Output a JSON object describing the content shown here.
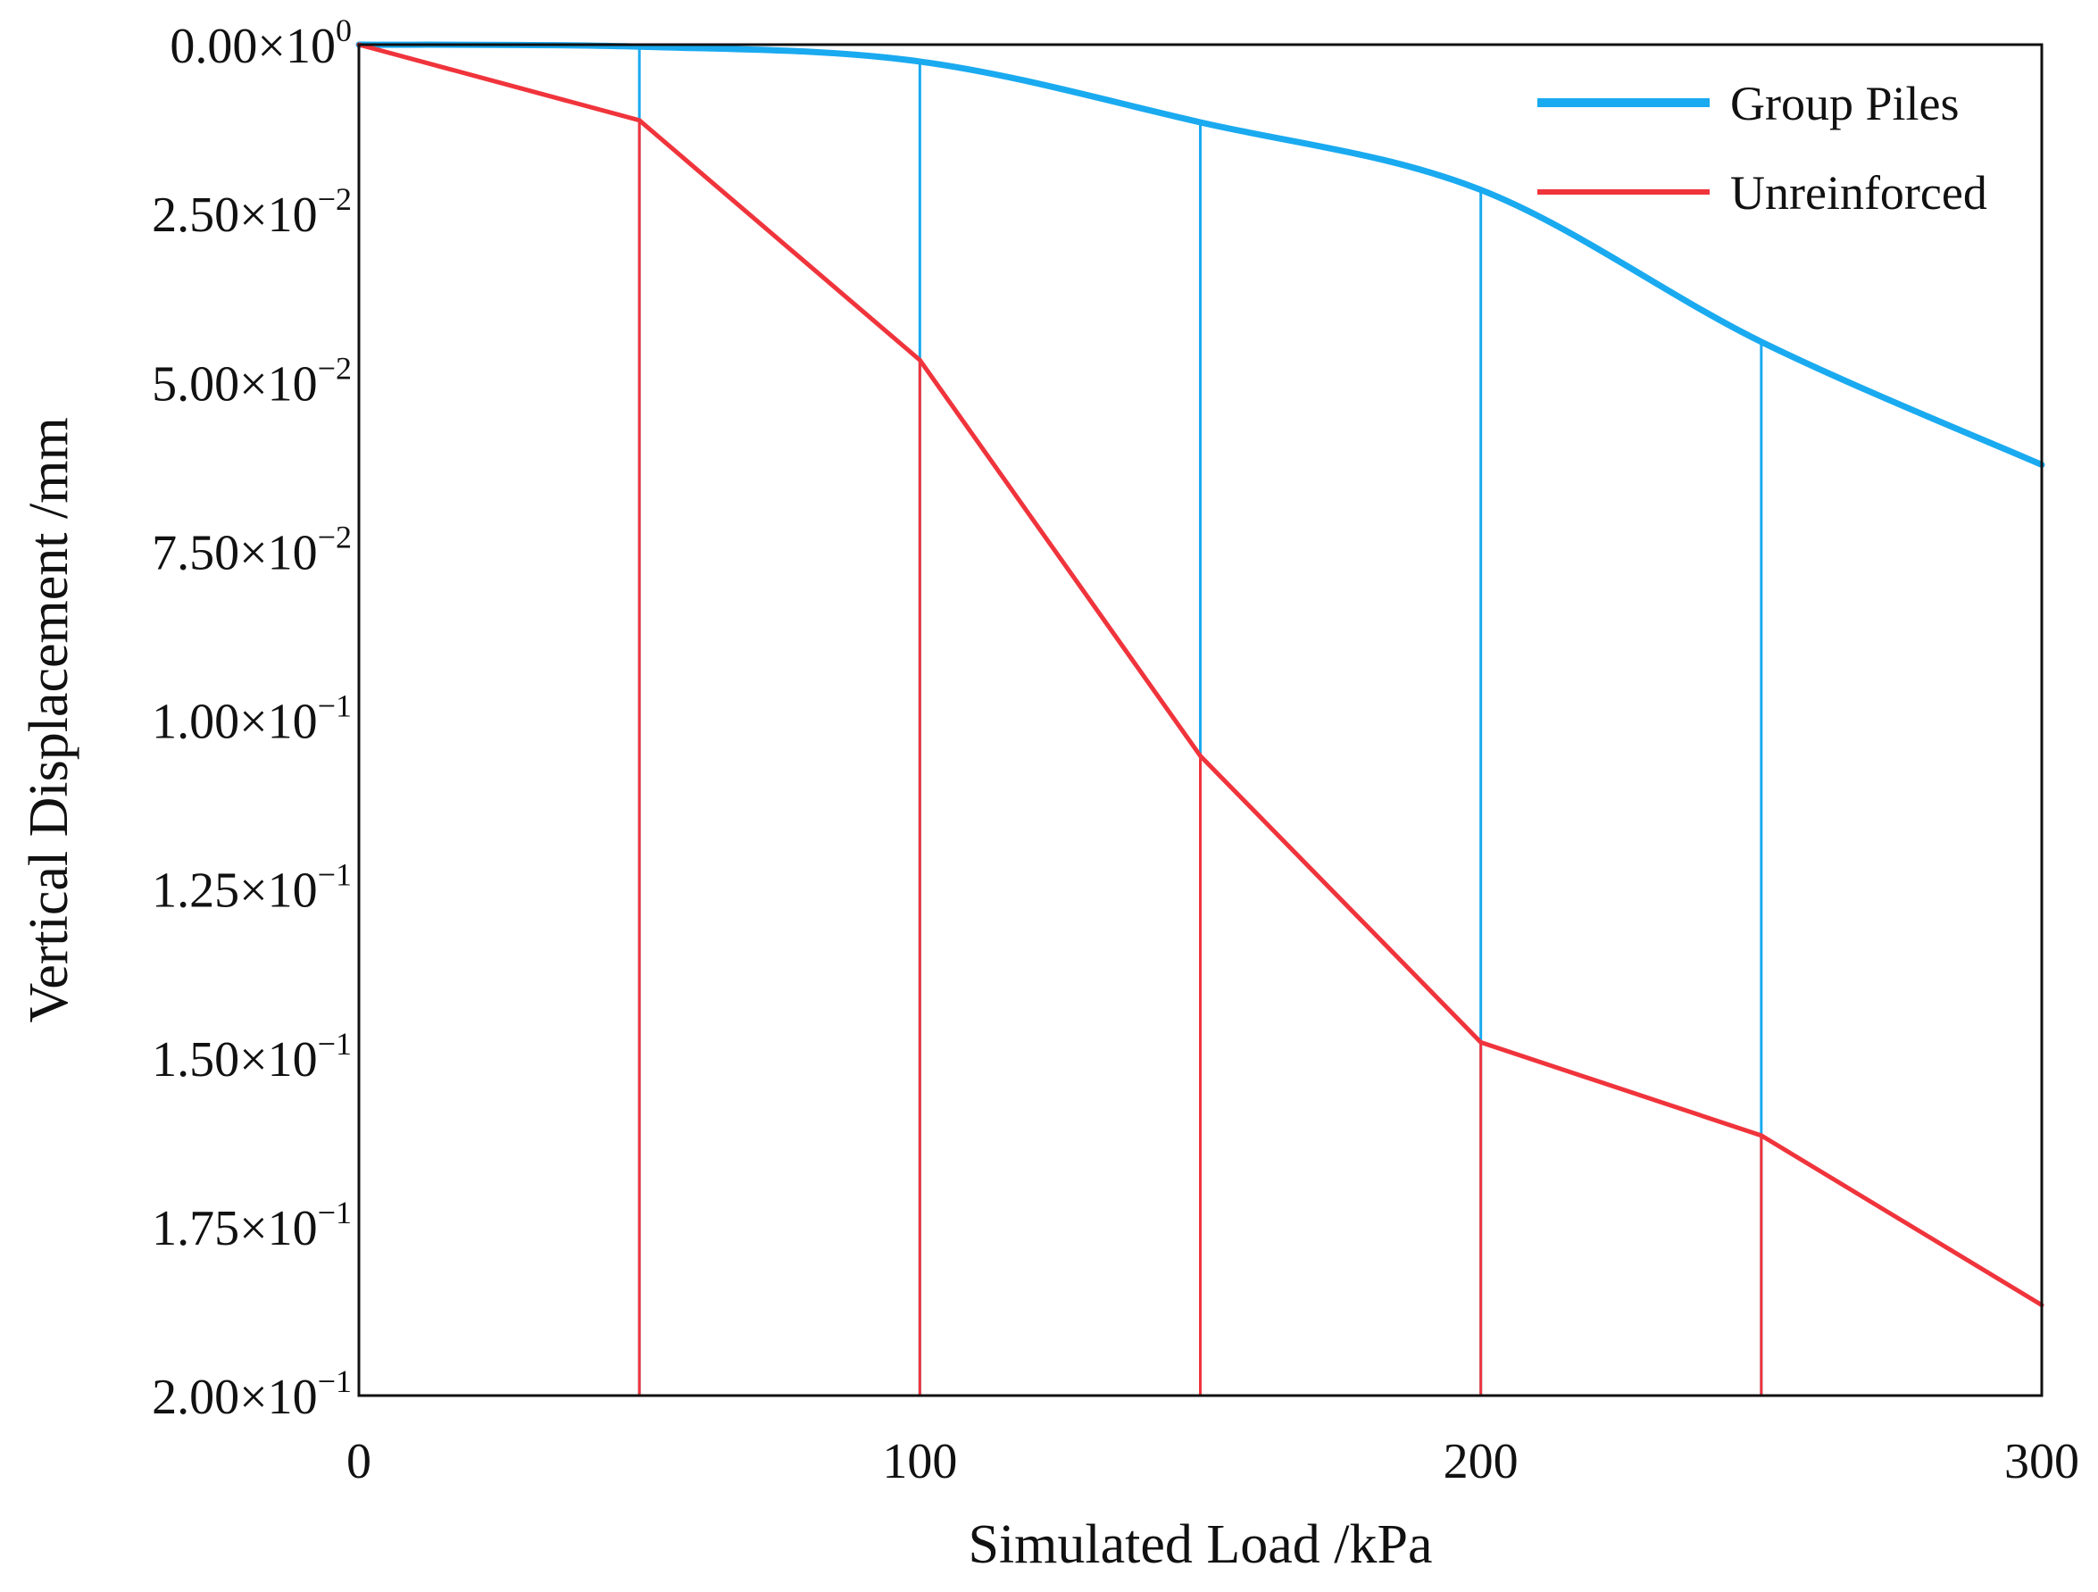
{
  "chart_data": {
    "type": "line",
    "title": "",
    "xlabel": "Simulated Load /kPa",
    "ylabel": "Vertical Displacement /mm",
    "xlim": [
      0,
      300
    ],
    "ylim": [
      0,
      0.2
    ],
    "y_inverted": true,
    "x_ticks": [
      0,
      100,
      200,
      300
    ],
    "x_tick_labels": [
      "0",
      "100",
      "200",
      "300"
    ],
    "y_ticks": [
      0,
      0.025,
      0.05,
      0.075,
      0.1,
      0.125,
      0.15,
      0.175,
      0.2
    ],
    "y_tick_labels": [
      {
        "mantissa": "0.00",
        "exp": "0"
      },
      {
        "mantissa": "2.50",
        "exp": "−2"
      },
      {
        "mantissa": "5.00",
        "exp": "−2"
      },
      {
        "mantissa": "7.50",
        "exp": "−2"
      },
      {
        "mantissa": "1.00",
        "exp": "−1"
      },
      {
        "mantissa": "1.25",
        "exp": "−1"
      },
      {
        "mantissa": "1.50",
        "exp": "−1"
      },
      {
        "mantissa": "1.75",
        "exp": "−1"
      },
      {
        "mantissa": "2.00",
        "exp": "−1"
      }
    ],
    "grid": false,
    "legend_position": "top-right",
    "series": [
      {
        "name": "Group Piles",
        "color": "#1AAAF0",
        "style": "smooth line with vertical drop lines",
        "x": [
          0,
          50,
          100,
          150,
          200,
          250,
          300
        ],
        "values": [
          0.0,
          0.0003,
          0.0025,
          0.0115,
          0.0215,
          0.044,
          0.0622
        ]
      },
      {
        "name": "Unreinforced",
        "color": "#F0343C",
        "style": "straight line with vertical drop lines",
        "x": [
          0,
          50,
          100,
          150,
          200,
          250,
          300
        ],
        "values": [
          0.0,
          0.0112,
          0.0467,
          0.1053,
          0.1477,
          0.1615,
          0.1866
        ]
      }
    ]
  }
}
